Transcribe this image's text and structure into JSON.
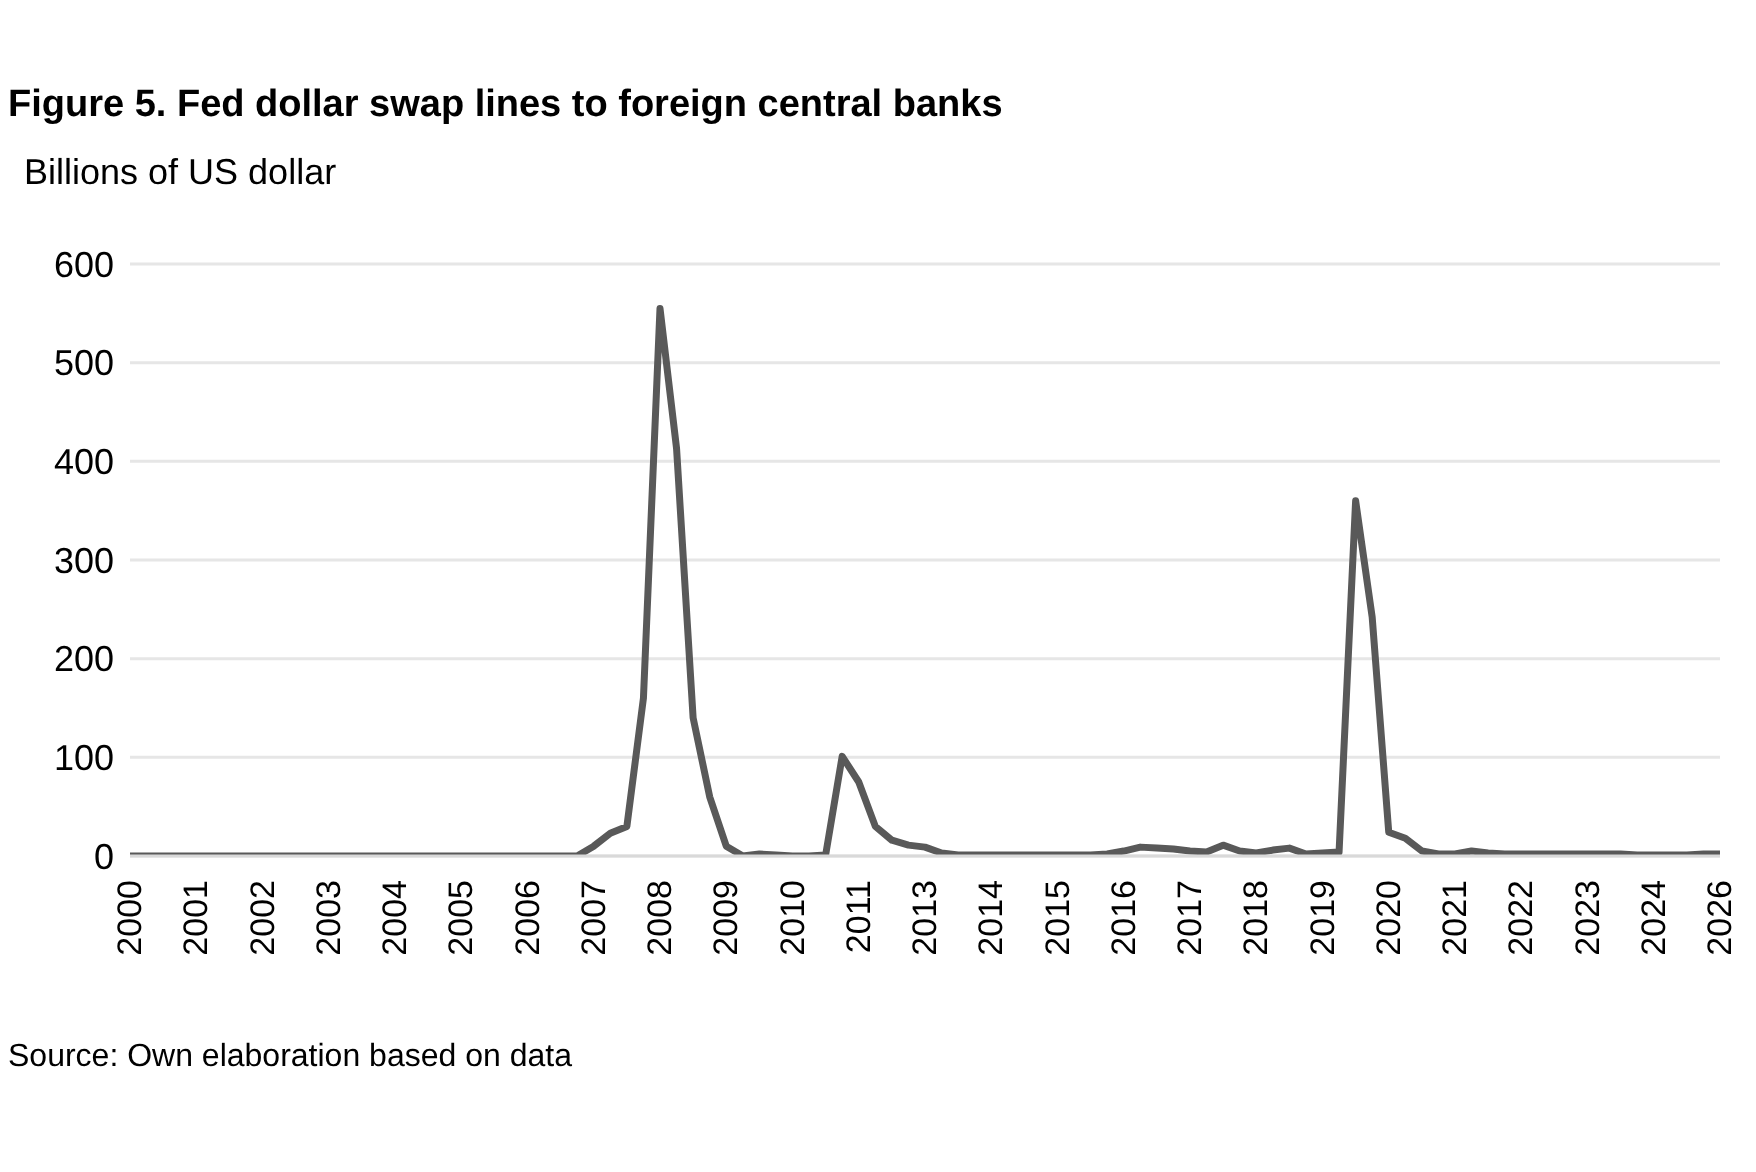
{
  "chart_data": {
    "type": "line",
    "title": "Figure 5. Fed dollar swap lines to foreign central banks",
    "ylabel": "Billions of US dollar",
    "annotations": [
      "Source: Own elaboration based on data"
    ],
    "categories": [
      "2000",
      null,
      null,
      null,
      "2001",
      null,
      null,
      null,
      "2002",
      null,
      null,
      null,
      "2003",
      null,
      null,
      null,
      "2004",
      null,
      null,
      null,
      "2005",
      null,
      null,
      null,
      "2006",
      null,
      null,
      null,
      "2007",
      null,
      null,
      null,
      "2008",
      null,
      null,
      null,
      "2009",
      null,
      null,
      null,
      "2010",
      null,
      null,
      null,
      "2011",
      null,
      null,
      null,
      "2013",
      null,
      null,
      null,
      "2014",
      null,
      null,
      null,
      "2015",
      null,
      null,
      null,
      "2016",
      null,
      null,
      null,
      "2017",
      null,
      null,
      null,
      "2018",
      null,
      null,
      null,
      "2019",
      null,
      null,
      null,
      "2020",
      null,
      null,
      null,
      "2021",
      null,
      null,
      null,
      "2022",
      null,
      null,
      null,
      "2023",
      null,
      null,
      null,
      "2024",
      null,
      null,
      null,
      "2026"
    ],
    "series": [
      {
        "color": "#595959",
        "values": [
          0,
          0,
          0,
          0,
          0,
          0,
          0,
          0,
          0,
          0,
          0,
          0,
          0,
          0,
          0,
          0,
          0,
          0,
          0,
          0,
          0,
          0,
          0,
          0,
          0,
          0,
          0,
          0,
          10,
          23,
          30,
          160,
          555,
          413,
          140,
          60,
          10,
          0,
          2,
          1,
          0,
          0,
          1,
          101,
          75,
          30,
          16,
          11,
          9,
          3,
          1,
          1,
          1,
          1,
          1,
          1,
          1,
          1,
          1,
          2,
          5,
          9,
          8,
          7,
          5,
          4,
          11,
          5,
          3,
          6,
          8,
          2,
          3,
          4,
          360,
          242,
          24,
          18,
          5,
          2,
          2,
          5,
          3,
          2,
          2,
          2,
          2,
          2,
          2,
          2,
          2,
          1,
          1,
          1,
          1,
          2,
          2
        ]
      }
    ],
    "ylim": [
      0,
      600
    ],
    "yticks": [
      0,
      100,
      200,
      300,
      400,
      500,
      600
    ],
    "grid": "y",
    "marker": "none",
    "line_style": "solid"
  }
}
